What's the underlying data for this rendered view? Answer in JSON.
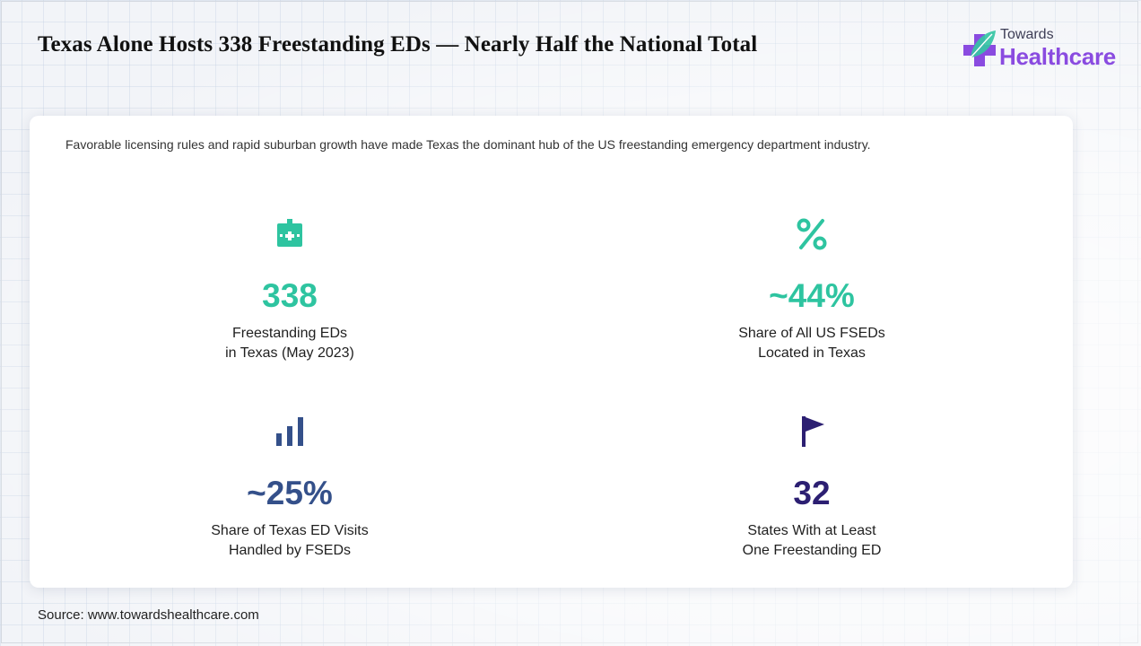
{
  "header": {
    "title": "Texas Alone Hosts 338 Freestanding EDs — Nearly Half the National Total"
  },
  "logo": {
    "line1": "Towards",
    "line2": "Healthcare",
    "icon": "medical-cross-leaf-icon",
    "colors": {
      "cross": "#8a4be0",
      "leaf": "#35c4a4"
    }
  },
  "card": {
    "subtitle": "Favorable licensing rules and rapid suburban growth have made Texas the dominant hub of the US freestanding emergency department industry.",
    "stats": [
      {
        "icon": "hospital-icon",
        "value": "338",
        "label_line1": "Freestanding EDs",
        "label_line2": "in Texas (May 2023)",
        "color": "#2ec4a0"
      },
      {
        "icon": "percent-icon",
        "value": "~44%",
        "label_line1": "Share of All US FSEDs",
        "label_line2": "Located in Texas",
        "color": "#2ec4a0"
      },
      {
        "icon": "bar-chart-icon",
        "value": "~25%",
        "label_line1": "Share of Texas ED Visits",
        "label_line2": "Handled by FSEDs",
        "color": "#34508a"
      },
      {
        "icon": "flag-icon",
        "value": "32",
        "label_line1": "States With at Least",
        "label_line2": "One Freestanding ED",
        "color": "#2c1f72"
      }
    ]
  },
  "footer": {
    "source": "Source: www.towardshealthcare.com"
  }
}
